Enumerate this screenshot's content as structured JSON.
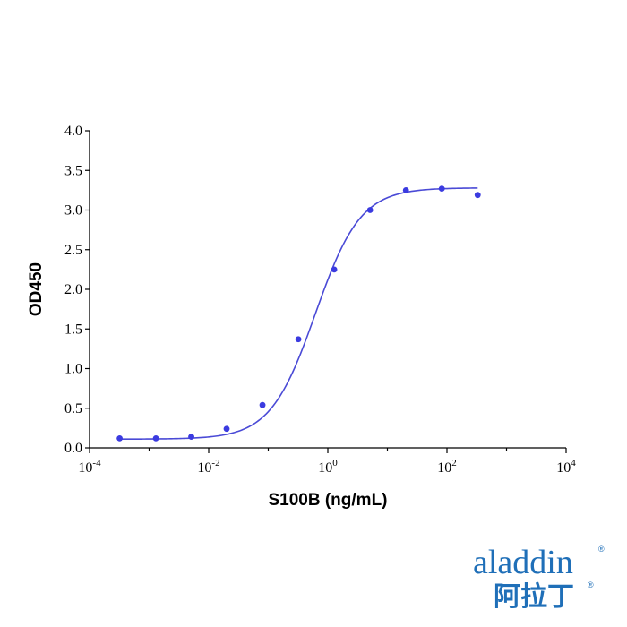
{
  "chart_data": {
    "type": "scatter",
    "title": "",
    "xlabel": "S100B (ng/mL)",
    "ylabel": "OD450",
    "x_scale": "log10",
    "xlim": [
      0.0001,
      10000
    ],
    "ylim": [
      0,
      4.0
    ],
    "x_ticks": [
      {
        "base": "10",
        "exp": "-4",
        "value": 0.0001
      },
      {
        "base": "10",
        "exp": "-2",
        "value": 0.01
      },
      {
        "base": "10",
        "exp": "0",
        "value": 1
      },
      {
        "base": "10",
        "exp": "2",
        "value": 100
      },
      {
        "base": "10",
        "exp": "4",
        "value": 10000
      }
    ],
    "y_ticks": [
      "0.0",
      "0.5",
      "1.0",
      "1.5",
      "2.0",
      "2.5",
      "3.0",
      "3.5",
      "4.0"
    ],
    "grid": false,
    "series": [
      {
        "color": "#3b3be0",
        "points": [
          {
            "x": 0.00032,
            "y": 0.12
          },
          {
            "x": 0.0013,
            "y": 0.12
          },
          {
            "x": 0.0051,
            "y": 0.14
          },
          {
            "x": 0.02,
            "y": 0.24
          },
          {
            "x": 0.08,
            "y": 0.54
          },
          {
            "x": 0.32,
            "y": 1.37
          },
          {
            "x": 1.28,
            "y": 2.25
          },
          {
            "x": 5.12,
            "y": 3.0
          },
          {
            "x": 20.48,
            "y": 3.25
          },
          {
            "x": 81.92,
            "y": 3.27
          },
          {
            "x": 327.68,
            "y": 3.19
          }
        ]
      }
    ],
    "fit_curve": {
      "color": "#4a4ad6",
      "x_range": [
        0.00032,
        327.68
      ],
      "bottom": 0.11,
      "top": 3.28,
      "ec50": 0.62,
      "hill": 1.15
    }
  },
  "logo": {
    "text": "aladdin",
    "chinese": "阿拉丁",
    "reg": "®"
  }
}
